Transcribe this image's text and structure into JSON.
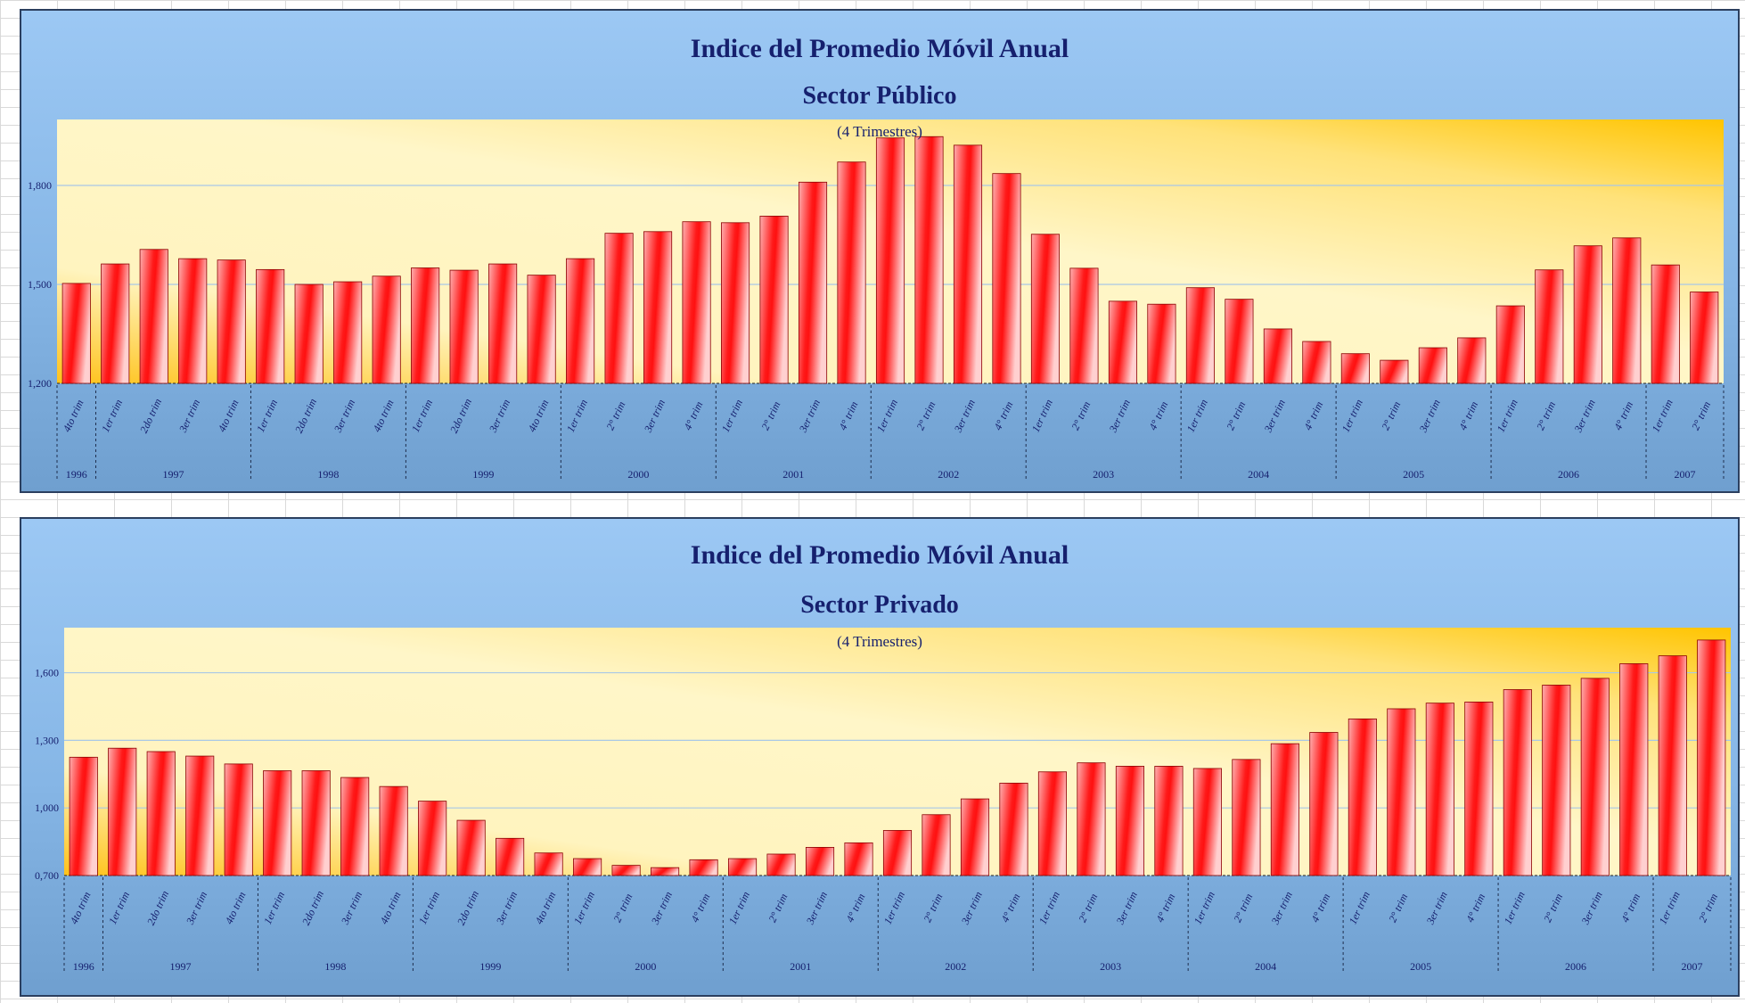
{
  "chart_data": [
    {
      "type": "bar",
      "title": "Indice del Promedio Móvil Anual",
      "subtitle": "Sector Público",
      "note": "(4 Trimestres)",
      "ylim": [
        1.2,
        2.0
      ],
      "yticks": [
        1.2,
        1.5,
        1.8
      ],
      "ytick_labels": [
        "1,200",
        "1,500",
        "1,800"
      ],
      "grid": true,
      "categories": [
        "4to trim",
        "1er trim",
        "2do trim",
        "3er trim",
        "4to trim",
        "1er trim",
        "2do trim",
        "3er trim",
        "4to trim",
        "1er trim",
        "2do trim",
        "3er trim",
        "4to trim",
        "1er trim",
        "2° trim",
        "3er trim",
        "4° trim",
        "1er trim",
        "2° trim",
        "3er trim",
        "4° trim",
        "1er trim",
        "2° trim",
        "3er trim",
        "4° trim",
        "1er trim",
        "2° trim",
        "3er trim",
        "4° trim",
        "1er trim",
        "2° trim",
        "3er trim",
        "4° trim",
        "1er trim",
        "2° trim",
        "3er trim",
        "4° trim",
        "1er trim",
        "2° trim",
        "3er trim",
        "4° trim",
        "1er trim",
        "2° trim"
      ],
      "year_groups": [
        {
          "label": "1996",
          "count": 1
        },
        {
          "label": "1997",
          "count": 4
        },
        {
          "label": "1998",
          "count": 4
        },
        {
          "label": "1999",
          "count": 4
        },
        {
          "label": "2000",
          "count": 4
        },
        {
          "label": "2001",
          "count": 4
        },
        {
          "label": "2002",
          "count": 4
        },
        {
          "label": "2003",
          "count": 4
        },
        {
          "label": "2004",
          "count": 4
        },
        {
          "label": "2005",
          "count": 4
        },
        {
          "label": "2006",
          "count": 4
        },
        {
          "label": "2007",
          "count": 2
        }
      ],
      "values": [
        1.503,
        1.562,
        1.606,
        1.578,
        1.574,
        1.545,
        1.5,
        1.508,
        1.525,
        1.55,
        1.543,
        1.562,
        1.528,
        1.578,
        1.655,
        1.66,
        1.69,
        1.687,
        1.707,
        1.81,
        1.871,
        1.944,
        1.948,
        1.922,
        1.836,
        1.652,
        1.549,
        1.449,
        1.44,
        1.49,
        1.455,
        1.365,
        1.327,
        1.29,
        1.27,
        1.308,
        1.338,
        1.435,
        1.544,
        1.617,
        1.641,
        1.559,
        1.477
      ],
      "bar_color": "#ff1a1a",
      "plot_bg": "#fff3b0"
    },
    {
      "type": "bar",
      "title": "Indice del Promedio Móvil Anual",
      "subtitle": "Sector Privado",
      "note": "(4 Trimestres)",
      "ylim": [
        0.7,
        1.8
      ],
      "yticks": [
        0.7,
        1.0,
        1.3,
        1.6
      ],
      "ytick_labels": [
        "0,700",
        "1,000",
        "1,300",
        "1,600"
      ],
      "grid": true,
      "categories": [
        "4to trim",
        "1er trim",
        "2do trim",
        "3er trim",
        "4to trim",
        "1er trim",
        "2do trim",
        "3er trim",
        "4to trim",
        "1er trim",
        "2do trim",
        "3er trim",
        "4to trim",
        "1er trim",
        "2° trim",
        "3er trim",
        "4° trim",
        "1er trim",
        "2° trim",
        "3er trim",
        "4° trim",
        "1er trim",
        "2° trim",
        "3er trim",
        "4° trim",
        "1er trim",
        "2° trim",
        "3er trim",
        "4° trim",
        "1er trim",
        "2° trim",
        "3er trim",
        "4° trim",
        "1er trim",
        "2° trim",
        "3er trim",
        "4° trim",
        "1er trim",
        "2° trim",
        "3er trim",
        "4° trim",
        "1er trim",
        "2° trim"
      ],
      "year_groups": [
        {
          "label": "1996",
          "count": 1
        },
        {
          "label": "1997",
          "count": 4
        },
        {
          "label": "1998",
          "count": 4
        },
        {
          "label": "1999",
          "count": 4
        },
        {
          "label": "2000",
          "count": 4
        },
        {
          "label": "2001",
          "count": 4
        },
        {
          "label": "2002",
          "count": 4
        },
        {
          "label": "2003",
          "count": 4
        },
        {
          "label": "2004",
          "count": 4
        },
        {
          "label": "2005",
          "count": 4
        },
        {
          "label": "2006",
          "count": 4
        },
        {
          "label": "2007",
          "count": 2
        }
      ],
      "values": [
        1.225,
        1.265,
        1.25,
        1.23,
        1.195,
        1.165,
        1.165,
        1.135,
        1.095,
        1.03,
        0.945,
        0.865,
        0.8,
        0.775,
        0.745,
        0.735,
        0.77,
        0.775,
        0.795,
        0.825,
        0.845,
        0.9,
        0.97,
        1.04,
        1.11,
        1.16,
        1.2,
        1.185,
        1.185,
        1.175,
        1.215,
        1.285,
        1.335,
        1.395,
        1.44,
        1.465,
        1.47,
        1.525,
        1.545,
        1.575,
        1.64,
        1.675,
        1.745
      ],
      "bar_color": "#ff1a1a",
      "plot_bg": "#fff3b0"
    }
  ]
}
